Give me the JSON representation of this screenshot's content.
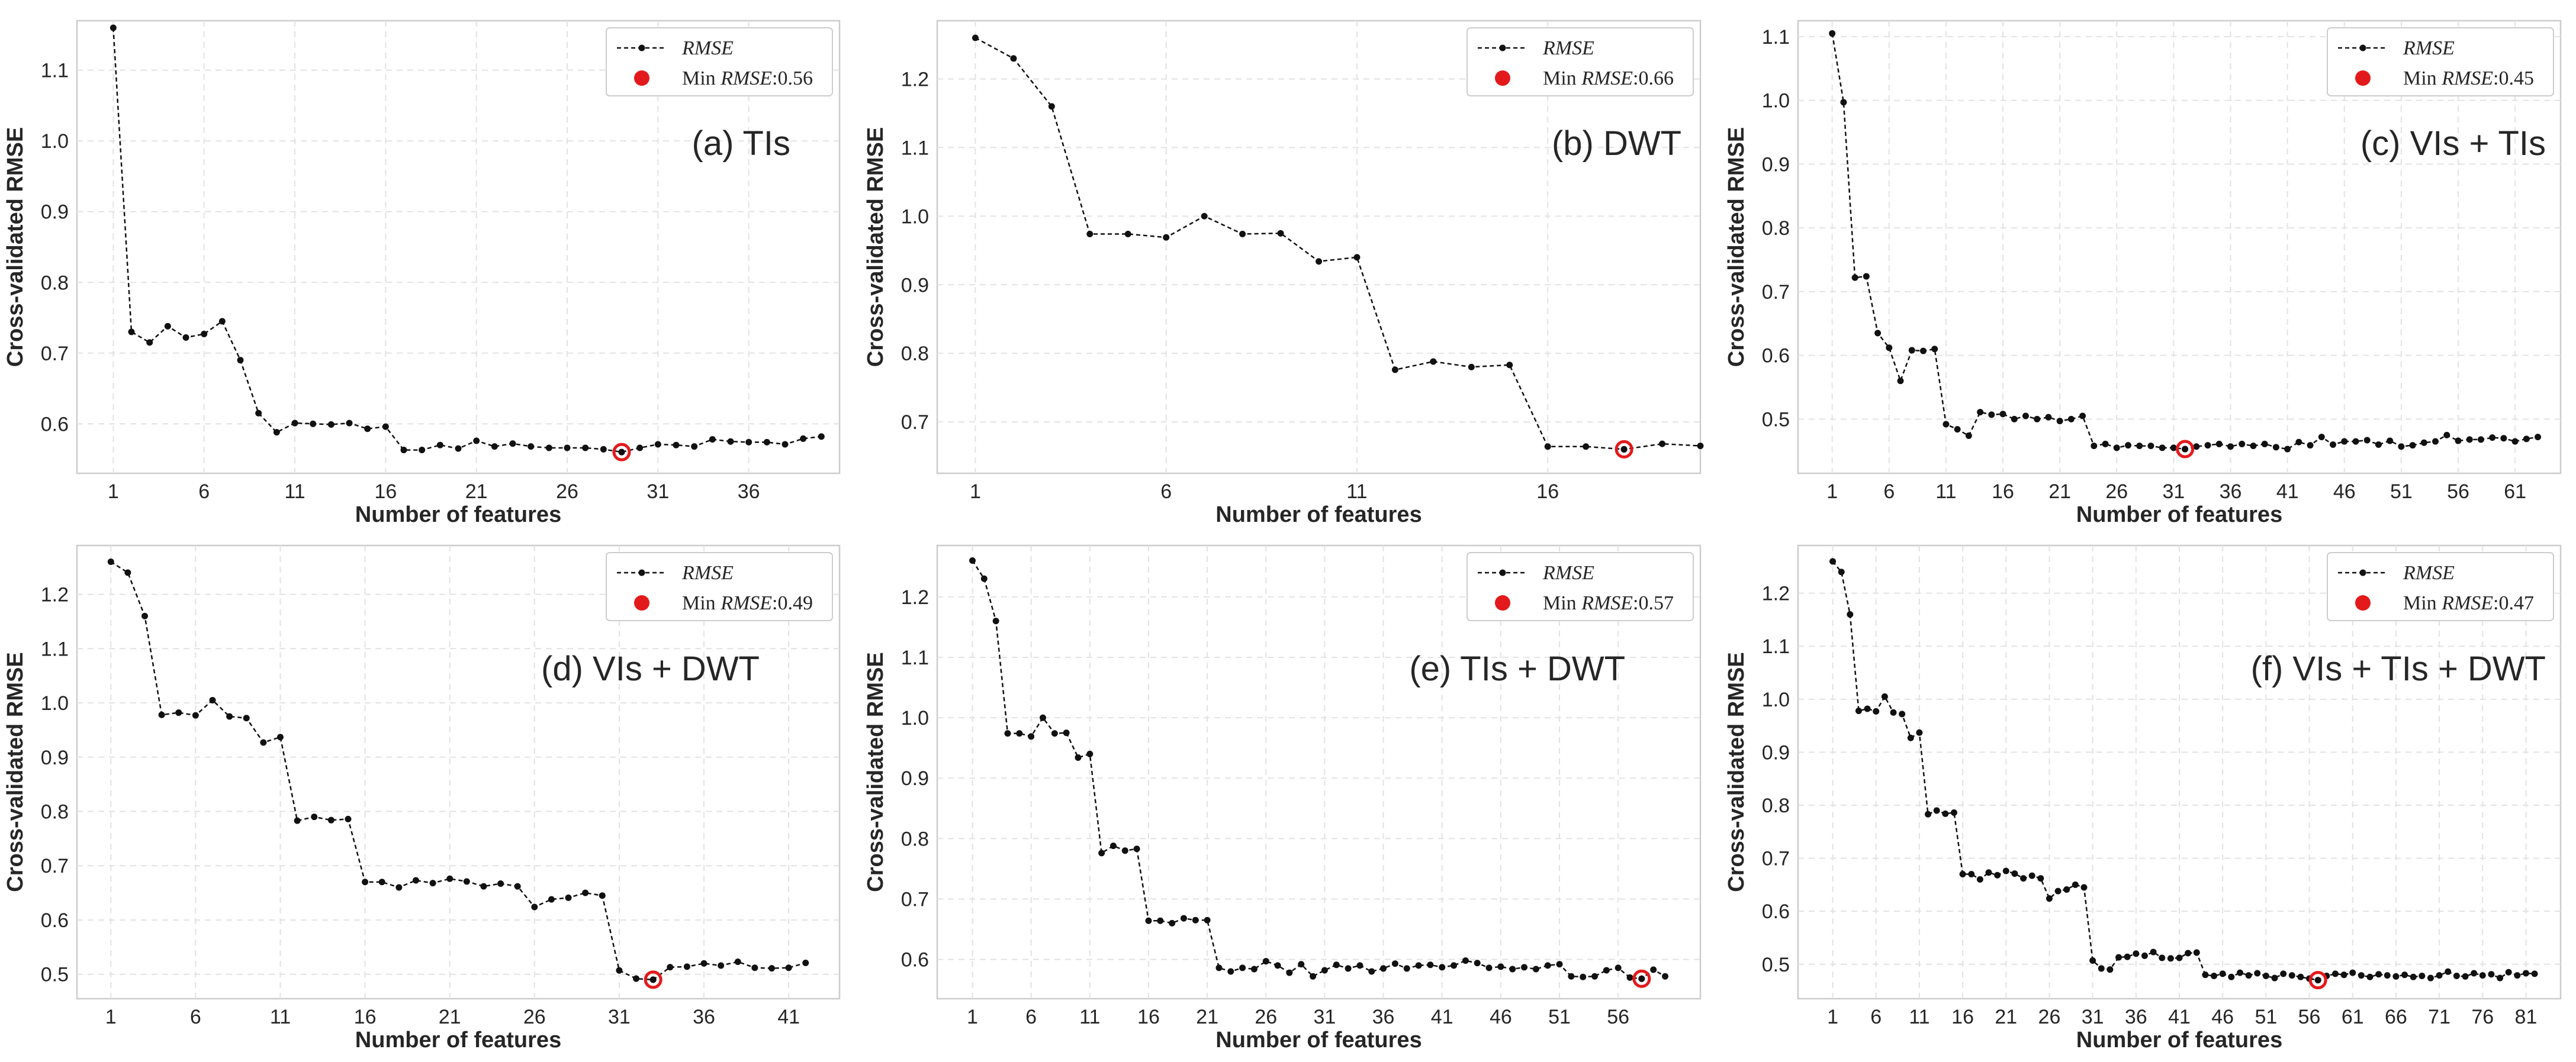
{
  "figure": {
    "legend_series": "RMSE",
    "legend_min_prefix": "Min",
    "legend_min_var": "RMSE"
  },
  "chart_data": [
    {
      "type": "line",
      "annotation": "(a) TIs",
      "xlabel": "Number of features",
      "ylabel": "Cross-validated RMSE",
      "min_rmse_label": ":0.56",
      "xlim": [
        -1,
        41
      ],
      "ylim": [
        0.53,
        1.17
      ],
      "xticks": [
        1,
        6,
        11,
        16,
        21,
        26,
        31,
        36
      ],
      "yticks": [
        0.6,
        0.7,
        0.8,
        0.9,
        1.0,
        1.1
      ],
      "ytick_labels": [
        "0.6",
        "0.7",
        "0.8",
        "0.9",
        "1.0",
        "1.1"
      ],
      "x_start": 1,
      "values": [
        1.16,
        0.73,
        0.715,
        0.738,
        0.722,
        0.727,
        0.745,
        0.69,
        0.615,
        0.588,
        0.601,
        0.6,
        0.599,
        0.601,
        0.593,
        0.596,
        0.563,
        0.563,
        0.57,
        0.565,
        0.576,
        0.568,
        0.572,
        0.568,
        0.566,
        0.566,
        0.566,
        0.564,
        0.56,
        0.566,
        0.571,
        0.57,
        0.568,
        0.578,
        0.575,
        0.574,
        0.574,
        0.571,
        0.579,
        0.582
      ],
      "min_index": 28
    },
    {
      "type": "line",
      "annotation": "(b) DWT",
      "xlabel": "Number of features",
      "ylabel": "Cross-validated RMSE",
      "min_rmse_label": ":0.66",
      "xlim": [
        0,
        20
      ],
      "ylim": [
        0.625,
        1.285
      ],
      "xticks": [
        1,
        6,
        11,
        16
      ],
      "yticks": [
        0.7,
        0.8,
        0.9,
        1.0,
        1.1,
        1.2
      ],
      "ytick_labels": [
        "0.7",
        "0.8",
        "0.9",
        "1.0",
        "1.1",
        "1.2"
      ],
      "x_start": 1,
      "values": [
        1.26,
        1.23,
        1.16,
        0.974,
        0.974,
        0.969,
        1.0,
        0.974,
        0.975,
        0.934,
        0.94,
        0.776,
        0.788,
        0.78,
        0.783,
        0.664,
        0.664,
        0.66,
        0.668,
        0.665
      ],
      "min_index": 17
    },
    {
      "type": "line",
      "annotation": "(c) VIs + TIs",
      "xlabel": "Number of features",
      "ylabel": "Cross-validated RMSE",
      "min_rmse_label": ":0.45",
      "xlim": [
        -2,
        65
      ],
      "ylim": [
        0.415,
        1.125
      ],
      "xticks": [
        1,
        6,
        11,
        16,
        21,
        26,
        31,
        36,
        41,
        46,
        51,
        56,
        61
      ],
      "yticks": [
        0.5,
        0.6,
        0.7,
        0.8,
        0.9,
        1.0,
        1.1
      ],
      "ytick_labels": [
        "0.5",
        "0.6",
        "0.7",
        "0.8",
        "0.9",
        "1.0",
        "1.1"
      ],
      "x_start": 1,
      "values": [
        1.105,
        0.997,
        0.722,
        0.724,
        0.635,
        0.612,
        0.56,
        0.608,
        0.607,
        0.61,
        0.492,
        0.484,
        0.474,
        0.511,
        0.507,
        0.508,
        0.5,
        0.505,
        0.5,
        0.503,
        0.497,
        0.5,
        0.505,
        0.458,
        0.461,
        0.455,
        0.459,
        0.458,
        0.458,
        0.455,
        0.455,
        0.453,
        0.457,
        0.459,
        0.461,
        0.457,
        0.461,
        0.458,
        0.461,
        0.456,
        0.453,
        0.464,
        0.459,
        0.472,
        0.46,
        0.465,
        0.465,
        0.467,
        0.46,
        0.466,
        0.457,
        0.459,
        0.463,
        0.465,
        0.475,
        0.466,
        0.468,
        0.468,
        0.471,
        0.47,
        0.465,
        0.469,
        0.472
      ],
      "min_index": 31
    },
    {
      "type": "line",
      "annotation": "(d) VIs + DWT",
      "xlabel": "Number of features",
      "ylabel": "Cross-validated RMSE",
      "min_rmse_label": ":0.49",
      "xlim": [
        -1,
        44
      ],
      "ylim": [
        0.455,
        1.29
      ],
      "xticks": [
        1,
        6,
        11,
        16,
        21,
        26,
        31,
        36,
        41
      ],
      "yticks": [
        0.5,
        0.6,
        0.7,
        0.8,
        0.9,
        1.0,
        1.1,
        1.2
      ],
      "ytick_labels": [
        "0.5",
        "0.6",
        "0.7",
        "0.8",
        "0.9",
        "1.0",
        "1.1",
        "1.2"
      ],
      "x_start": 1,
      "values": [
        1.26,
        1.24,
        1.16,
        0.978,
        0.982,
        0.977,
        1.005,
        0.975,
        0.972,
        0.927,
        0.937,
        0.783,
        0.79,
        0.784,
        0.786,
        0.67,
        0.67,
        0.66,
        0.673,
        0.668,
        0.676,
        0.671,
        0.662,
        0.667,
        0.662,
        0.624,
        0.638,
        0.641,
        0.65,
        0.645,
        0.507,
        0.492,
        0.49,
        0.513,
        0.514,
        0.52,
        0.516,
        0.523,
        0.512,
        0.511,
        0.512,
        0.521
      ],
      "min_index": 32
    },
    {
      "type": "line",
      "annotation": "(e) TIs  + DWT",
      "xlabel": "Number of features",
      "ylabel": "Cross-validated RMSE",
      "min_rmse_label": ":0.57",
      "xlim": [
        -2,
        63
      ],
      "ylim": [
        0.535,
        1.285
      ],
      "xticks": [
        1,
        6,
        11,
        16,
        21,
        26,
        31,
        36,
        41,
        46,
        51,
        56
      ],
      "yticks": [
        0.6,
        0.7,
        0.8,
        0.9,
        1.0,
        1.1,
        1.2
      ],
      "ytick_labels": [
        "0.6",
        "0.7",
        "0.8",
        "0.9",
        "1.0",
        "1.1",
        "1.2"
      ],
      "x_start": 1,
      "values": [
        1.26,
        1.23,
        1.16,
        0.974,
        0.974,
        0.969,
        1.0,
        0.974,
        0.975,
        0.934,
        0.94,
        0.776,
        0.788,
        0.78,
        0.783,
        0.664,
        0.664,
        0.66,
        0.668,
        0.665,
        0.665,
        0.586,
        0.58,
        0.586,
        0.584,
        0.597,
        0.59,
        0.578,
        0.592,
        0.572,
        0.582,
        0.591,
        0.585,
        0.59,
        0.58,
        0.585,
        0.593,
        0.585,
        0.59,
        0.591,
        0.587,
        0.59,
        0.598,
        0.594,
        0.586,
        0.588,
        0.584,
        0.587,
        0.584,
        0.59,
        0.592,
        0.572,
        0.571,
        0.572,
        0.582,
        0.586,
        0.57,
        0.568,
        0.583,
        0.572
      ],
      "min_index": 57
    },
    {
      "type": "line",
      "annotation": "(f) VIs + TIs + DWT",
      "xlabel": "Number of features",
      "ylabel": "Cross-validated RMSE",
      "min_rmse_label": ":0.47",
      "xlim": [
        -3,
        85
      ],
      "ylim": [
        0.435,
        1.29
      ],
      "xticks": [
        1,
        6,
        11,
        16,
        21,
        26,
        31,
        36,
        41,
        46,
        51,
        56,
        61,
        66,
        71,
        76,
        81
      ],
      "yticks": [
        0.5,
        0.6,
        0.7,
        0.8,
        0.9,
        1.0,
        1.1,
        1.2
      ],
      "ytick_labels": [
        "0.5",
        "0.6",
        "0.7",
        "0.8",
        "0.9",
        "1.0",
        "1.1",
        "1.2"
      ],
      "x_start": 1,
      "values": [
        1.26,
        1.24,
        1.16,
        0.978,
        0.982,
        0.977,
        1.005,
        0.975,
        0.972,
        0.927,
        0.937,
        0.783,
        0.79,
        0.784,
        0.786,
        0.67,
        0.67,
        0.66,
        0.673,
        0.668,
        0.676,
        0.671,
        0.662,
        0.667,
        0.662,
        0.624,
        0.638,
        0.641,
        0.65,
        0.645,
        0.507,
        0.492,
        0.49,
        0.513,
        0.514,
        0.52,
        0.516,
        0.523,
        0.512,
        0.511,
        0.512,
        0.521,
        0.522,
        0.48,
        0.478,
        0.482,
        0.476,
        0.484,
        0.479,
        0.483,
        0.478,
        0.474,
        0.482,
        0.479,
        0.476,
        0.473,
        0.47,
        0.478,
        0.482,
        0.48,
        0.484,
        0.479,
        0.476,
        0.481,
        0.479,
        0.477,
        0.48,
        0.476,
        0.478,
        0.474,
        0.479,
        0.486,
        0.478,
        0.477,
        0.483,
        0.479,
        0.481,
        0.474,
        0.485,
        0.479,
        0.483,
        0.482
      ],
      "min_index": 56
    }
  ]
}
